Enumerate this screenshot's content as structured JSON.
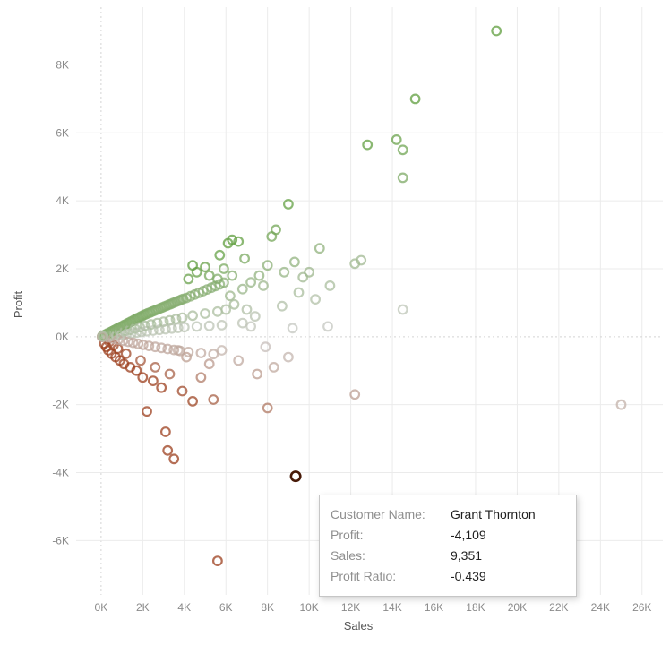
{
  "axes": {
    "x": {
      "label": "Sales",
      "tick_values": [
        0,
        2000,
        4000,
        6000,
        8000,
        10000,
        12000,
        14000,
        16000,
        18000,
        20000,
        22000,
        24000,
        26000
      ],
      "tick_labels": [
        "0K",
        "2K",
        "4K",
        "6K",
        "8K",
        "10K",
        "12K",
        "14K",
        "16K",
        "18K",
        "20K",
        "22K",
        "24K",
        "26K"
      ]
    },
    "y": {
      "label": "Profit",
      "tick_values": [
        -6000,
        -4000,
        -2000,
        0,
        2000,
        4000,
        6000,
        8000
      ],
      "tick_labels": [
        "-6K",
        "-4K",
        "-2K",
        "0K",
        "2K",
        "4K",
        "6K",
        "8K"
      ]
    }
  },
  "tooltip": {
    "rows": [
      {
        "label": "Customer Name:",
        "value": "Grant Thornton"
      },
      {
        "label": "Profit:",
        "value": "-4,109"
      },
      {
        "label": "Sales:",
        "value": "9,351"
      },
      {
        "label": "Profit Ratio:",
        "value": "-0.439"
      }
    ]
  },
  "colors": {
    "positive": "#5f9e3e",
    "neutral": "#cbcac8",
    "negative": "#9c3f1d",
    "highlight_stroke": "#471a08",
    "gridline": "#ebebeb",
    "zero_gridline": "#d4d4d4"
  },
  "chart_data": {
    "type": "scatter",
    "title": "",
    "xlabel": "Sales",
    "ylabel": "Profit",
    "xlim": [
      -1200,
      27000
    ],
    "ylim": [
      -7600,
      9700
    ],
    "grid": true,
    "legend": false,
    "color_encoding": "profit ratio (red negative, gray neutral, green positive)",
    "highlighted_point": {
      "sales": 9351,
      "profit": -4109,
      "profit_ratio": -0.439,
      "customer": "Grant Thornton"
    },
    "points": [
      [
        19000,
        9000
      ],
      [
        15100,
        7000
      ],
      [
        14200,
        5800
      ],
      [
        14500,
        5500
      ],
      [
        12800,
        5650
      ],
      [
        14500,
        4680
      ],
      [
        9000,
        3900
      ],
      [
        8400,
        3150
      ],
      [
        8200,
        2950
      ],
      [
        6300,
        2850
      ],
      [
        6600,
        2800
      ],
      [
        10500,
        2600
      ],
      [
        12500,
        2250
      ],
      [
        12200,
        2150
      ],
      [
        9300,
        2200
      ],
      [
        10000,
        1900
      ],
      [
        9700,
        1750
      ],
      [
        8800,
        1900
      ],
      [
        8000,
        2100
      ],
      [
        7600,
        1800
      ],
      [
        6900,
        2300
      ],
      [
        11000,
        1500
      ],
      [
        9500,
        1300
      ],
      [
        10300,
        1100
      ],
      [
        8700,
        900
      ],
      [
        14500,
        800
      ],
      [
        7800,
        1500
      ],
      [
        7200,
        1600
      ],
      [
        6800,
        1400
      ],
      [
        6300,
        1800
      ],
      [
        5900,
        2000
      ],
      [
        5700,
        2400
      ],
      [
        6100,
        2750
      ],
      [
        25000,
        -2000
      ],
      [
        12200,
        -1700
      ],
      [
        9000,
        -600
      ],
      [
        8300,
        -900
      ],
      [
        7500,
        -1100
      ],
      [
        9200,
        250
      ],
      [
        10900,
        300
      ],
      [
        7900,
        -300
      ],
      [
        6600,
        -700
      ],
      [
        5800,
        -400
      ],
      [
        8000,
        -2100
      ],
      [
        5600,
        -6600
      ],
      [
        3500,
        -3600
      ],
      [
        3200,
        -3350
      ],
      [
        3100,
        -2800
      ],
      [
        2200,
        -2200
      ],
      [
        4400,
        -1900
      ],
      [
        5400,
        -1850
      ],
      [
        3900,
        -1600
      ],
      [
        2900,
        -1500
      ],
      [
        2500,
        -1300
      ],
      [
        2000,
        -1200
      ],
      [
        1700,
        -1000
      ],
      [
        1400,
        -900
      ],
      [
        1100,
        -800
      ],
      [
        900,
        -700
      ],
      [
        700,
        -600
      ],
      [
        500,
        -500
      ],
      [
        350,
        -400
      ],
      [
        250,
        -300
      ],
      [
        150,
        -200
      ],
      [
        2600,
        -900
      ],
      [
        3300,
        -1100
      ],
      [
        1900,
        -700
      ],
      [
        1200,
        -500
      ],
      [
        800,
        -350
      ],
      [
        600,
        -250
      ],
      [
        400,
        -150
      ],
      [
        4800,
        -1200
      ],
      [
        5200,
        -800
      ],
      [
        4100,
        -600
      ],
      [
        3700,
        -400
      ],
      [
        120,
        15
      ],
      [
        160,
        40
      ],
      [
        210,
        65
      ],
      [
        260,
        30
      ],
      [
        310,
        95
      ],
      [
        340,
        -20
      ],
      [
        380,
        110
      ],
      [
        420,
        60
      ],
      [
        460,
        140
      ],
      [
        500,
        20
      ],
      [
        540,
        160
      ],
      [
        580,
        -60
      ],
      [
        620,
        190
      ],
      [
        660,
        90
      ],
      [
        700,
        215
      ],
      [
        740,
        40
      ],
      [
        780,
        240
      ],
      [
        820,
        -90
      ],
      [
        860,
        260
      ],
      [
        900,
        130
      ],
      [
        940,
        290
      ],
      [
        980,
        55
      ],
      [
        1020,
        310
      ],
      [
        1060,
        -120
      ],
      [
        1100,
        340
      ],
      [
        1140,
        170
      ],
      [
        1180,
        360
      ],
      [
        1220,
        80
      ],
      [
        1260,
        390
      ],
      [
        1300,
        -150
      ],
      [
        1340,
        410
      ],
      [
        1380,
        200
      ],
      [
        1420,
        440
      ],
      [
        1460,
        100
      ],
      [
        1500,
        460
      ],
      [
        1540,
        -180
      ],
      [
        1580,
        490
      ],
      [
        1620,
        240
      ],
      [
        1660,
        510
      ],
      [
        1700,
        120
      ],
      [
        1740,
        540
      ],
      [
        1780,
        -210
      ],
      [
        1820,
        560
      ],
      [
        1860,
        280
      ],
      [
        1900,
        590
      ],
      [
        1940,
        140
      ],
      [
        1980,
        610
      ],
      [
        2020,
        -240
      ],
      [
        2060,
        640
      ],
      [
        2100,
        320
      ],
      [
        2150,
        660
      ],
      [
        2200,
        160
      ],
      [
        2250,
        690
      ],
      [
        2300,
        -270
      ],
      [
        2350,
        710
      ],
      [
        2400,
        360
      ],
      [
        2450,
        740
      ],
      [
        2500,
        180
      ],
      [
        2550,
        760
      ],
      [
        2600,
        -300
      ],
      [
        2650,
        790
      ],
      [
        2700,
        400
      ],
      [
        2750,
        810
      ],
      [
        2800,
        200
      ],
      [
        2850,
        840
      ],
      [
        2900,
        -330
      ],
      [
        2950,
        860
      ],
      [
        3000,
        440
      ],
      [
        3050,
        890
      ],
      [
        3100,
        220
      ],
      [
        3150,
        910
      ],
      [
        3200,
        -360
      ],
      [
        3250,
        940
      ],
      [
        3300,
        480
      ],
      [
        3350,
        960
      ],
      [
        3400,
        240
      ],
      [
        3450,
        990
      ],
      [
        3500,
        -390
      ],
      [
        3550,
        1010
      ],
      [
        3600,
        520
      ],
      [
        3650,
        1040
      ],
      [
        3700,
        260
      ],
      [
        3750,
        1060
      ],
      [
        3800,
        -420
      ],
      [
        3850,
        1090
      ],
      [
        3900,
        560
      ],
      [
        3950,
        1110
      ],
      [
        4000,
        280
      ],
      [
        4100,
        1140
      ],
      [
        4200,
        -450
      ],
      [
        4300,
        1190
      ],
      [
        4400,
        620
      ],
      [
        4500,
        1240
      ],
      [
        4600,
        300
      ],
      [
        4700,
        1290
      ],
      [
        4800,
        -480
      ],
      [
        4900,
        1340
      ],
      [
        5000,
        680
      ],
      [
        5100,
        1390
      ],
      [
        5200,
        320
      ],
      [
        5300,
        1440
      ],
      [
        5400,
        -510
      ],
      [
        5500,
        1490
      ],
      [
        5600,
        740
      ],
      [
        5700,
        1540
      ],
      [
        5800,
        340
      ],
      [
        5900,
        1590
      ],
      [
        6000,
        800
      ],
      [
        50,
        5
      ],
      [
        80,
        -10
      ],
      [
        60,
        20
      ],
      [
        90,
        12
      ],
      [
        40,
        -5
      ],
      [
        70,
        8
      ],
      [
        4200,
        1700
      ],
      [
        4600,
        1900
      ],
      [
        5000,
        2050
      ],
      [
        4400,
        2100
      ],
      [
        5200,
        1800
      ],
      [
        5600,
        1700
      ],
      [
        6200,
        1200
      ],
      [
        6400,
        950
      ],
      [
        7000,
        800
      ],
      [
        7400,
        600
      ],
      [
        6800,
        400
      ],
      [
        7200,
        300
      ]
    ]
  }
}
